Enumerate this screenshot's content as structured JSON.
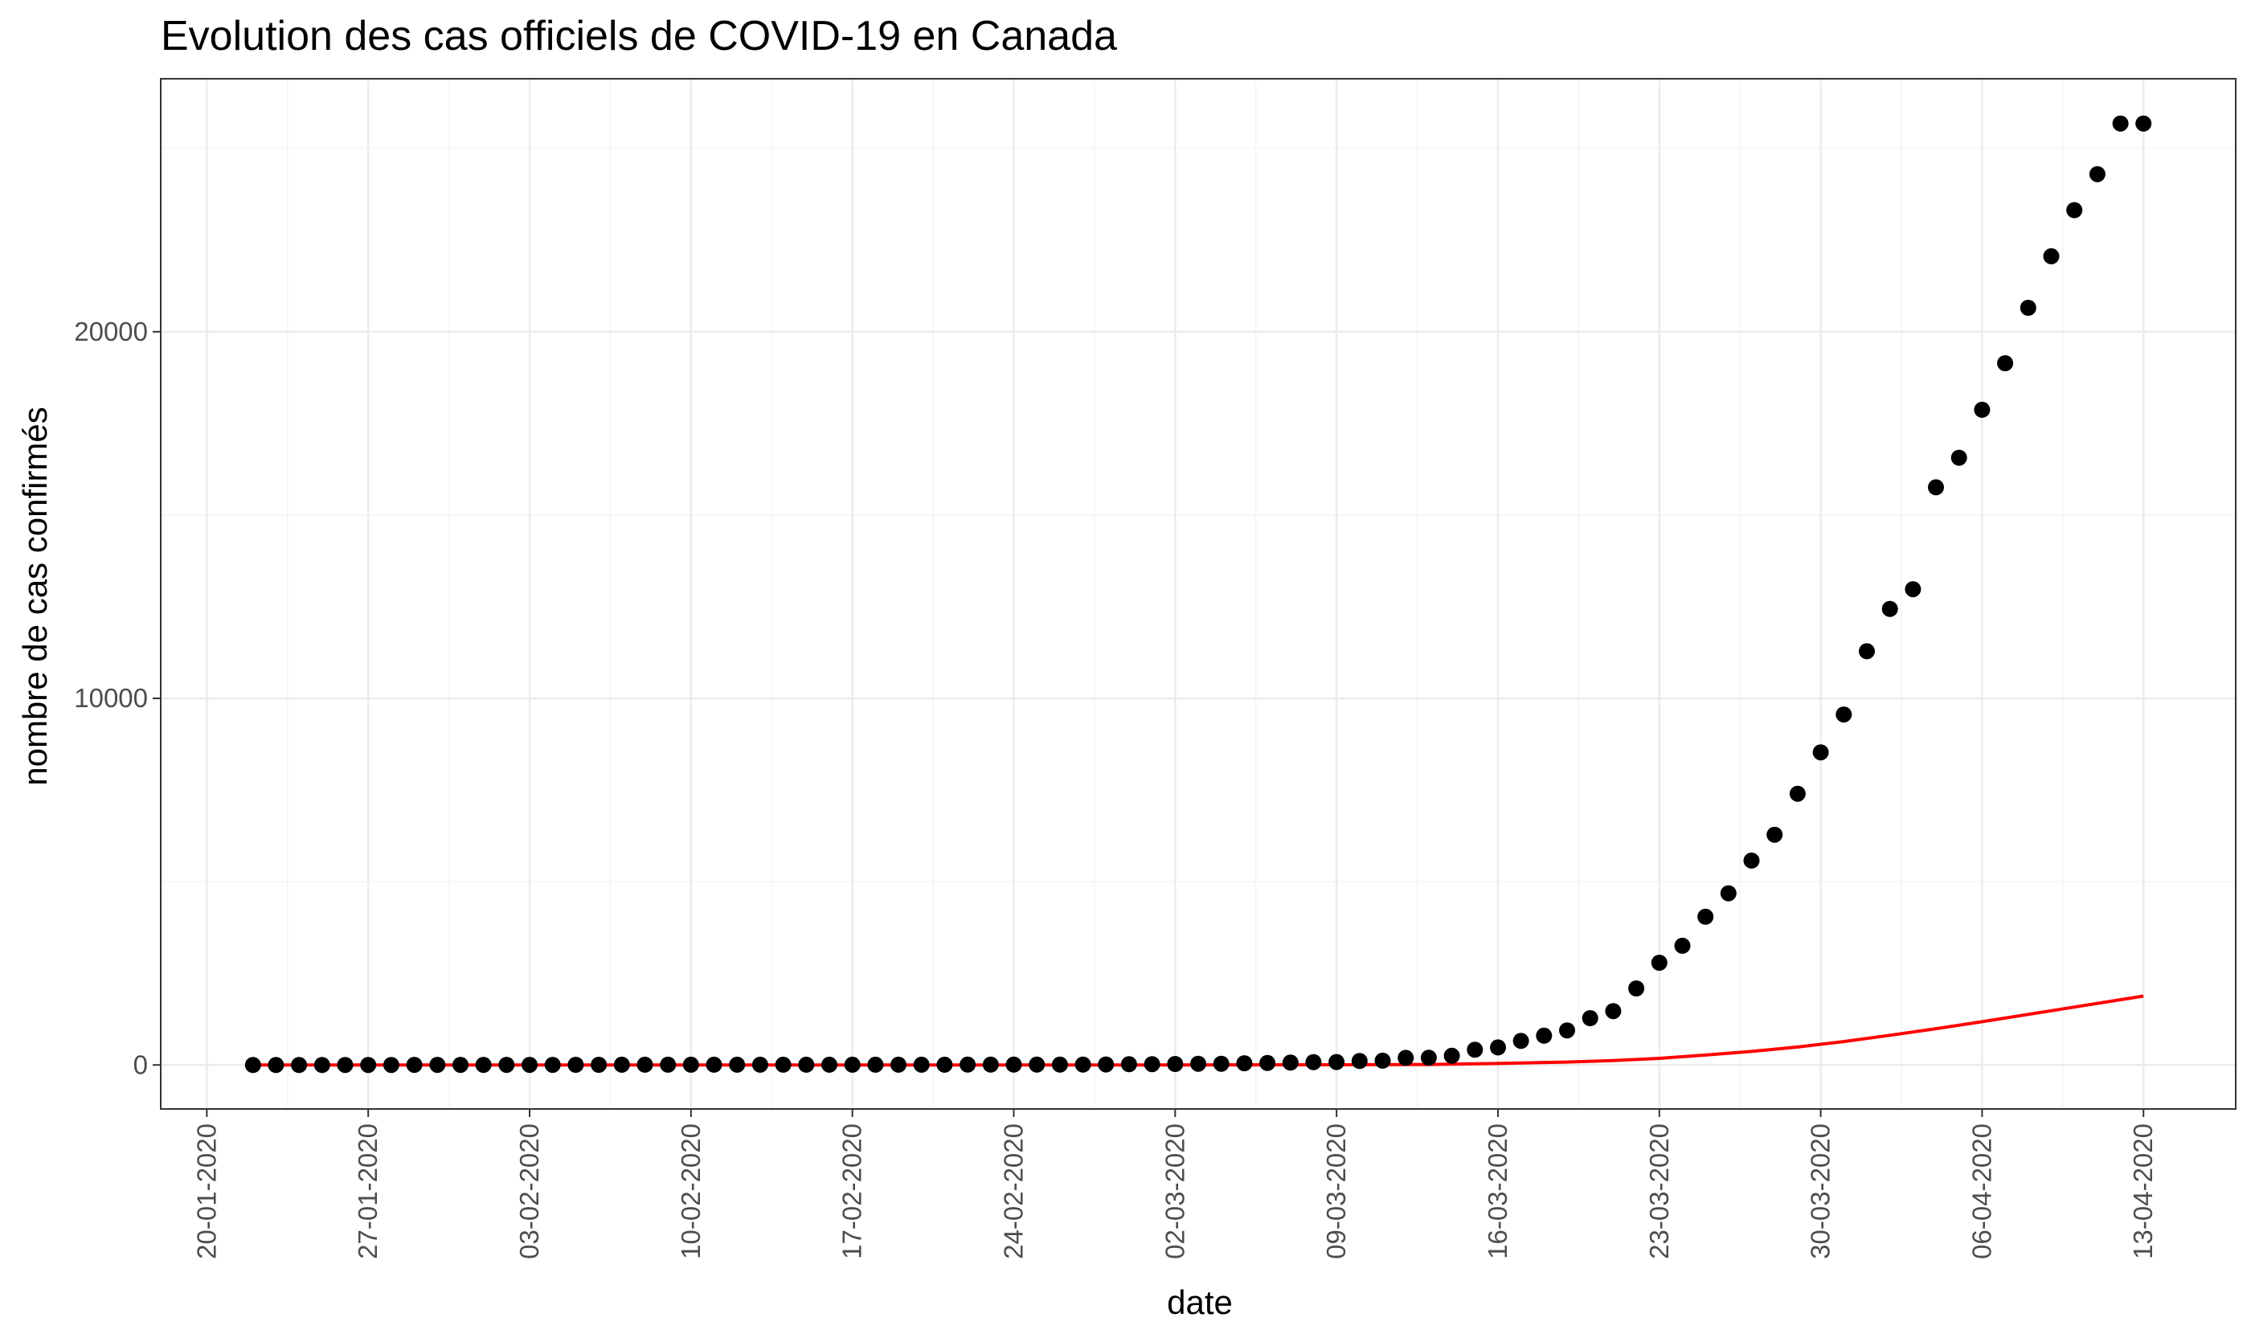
{
  "chart_data": {
    "type": "scatter",
    "title": "Evolution des cas officiels de COVID-19 en Canada",
    "xlabel": "date",
    "ylabel": "nombre de cas confirmés",
    "x_tick_labels": [
      "20-01-2020",
      "27-01-2020",
      "03-02-2020",
      "10-02-2020",
      "17-02-2020",
      "24-02-2020",
      "02-03-2020",
      "09-03-2020",
      "16-03-2020",
      "23-03-2020",
      "30-03-2020",
      "06-04-2020",
      "13-04-2020"
    ],
    "y_ticks": [
      0,
      10000,
      20000
    ],
    "y_tick_labels": [
      "0",
      "10000",
      "20000"
    ],
    "x_range": [
      "2020-01-18",
      "2020-04-17"
    ],
    "y_range": [
      -1200,
      26900
    ],
    "grid": true,
    "legend": "none",
    "series": [
      {
        "type": "points",
        "color": "#000000",
        "x": [
          "2020-01-22",
          "2020-01-23",
          "2020-01-24",
          "2020-01-25",
          "2020-01-26",
          "2020-01-27",
          "2020-01-28",
          "2020-01-29",
          "2020-01-30",
          "2020-01-31",
          "2020-02-01",
          "2020-02-02",
          "2020-02-03",
          "2020-02-04",
          "2020-02-05",
          "2020-02-06",
          "2020-02-07",
          "2020-02-08",
          "2020-02-09",
          "2020-02-10",
          "2020-02-11",
          "2020-02-12",
          "2020-02-13",
          "2020-02-14",
          "2020-02-15",
          "2020-02-16",
          "2020-02-17",
          "2020-02-18",
          "2020-02-19",
          "2020-02-20",
          "2020-02-21",
          "2020-02-22",
          "2020-02-23",
          "2020-02-24",
          "2020-02-25",
          "2020-02-26",
          "2020-02-27",
          "2020-02-28",
          "2020-02-29",
          "2020-03-01",
          "2020-03-02",
          "2020-03-03",
          "2020-03-04",
          "2020-03-05",
          "2020-03-06",
          "2020-03-07",
          "2020-03-08",
          "2020-03-09",
          "2020-03-10",
          "2020-03-11",
          "2020-03-12",
          "2020-03-13",
          "2020-03-14",
          "2020-03-15",
          "2020-03-16",
          "2020-03-17",
          "2020-03-18",
          "2020-03-19",
          "2020-03-20",
          "2020-03-21",
          "2020-03-22",
          "2020-03-23",
          "2020-03-24",
          "2020-03-25",
          "2020-03-26",
          "2020-03-27",
          "2020-03-28",
          "2020-03-29",
          "2020-03-30",
          "2020-03-31",
          "2020-04-01",
          "2020-04-02",
          "2020-04-03",
          "2020-04-04",
          "2020-04-05",
          "2020-04-06",
          "2020-04-07",
          "2020-04-08",
          "2020-04-09",
          "2020-04-10",
          "2020-04-11",
          "2020-04-12",
          "2020-04-13"
        ],
        "y": [
          0,
          0,
          0,
          0,
          1,
          1,
          2,
          3,
          3,
          4,
          4,
          4,
          4,
          4,
          5,
          5,
          7,
          7,
          7,
          7,
          7,
          7,
          7,
          7,
          7,
          8,
          8,
          8,
          8,
          8,
          8,
          9,
          9,
          10,
          11,
          11,
          13,
          14,
          20,
          24,
          27,
          33,
          34,
          48,
          54,
          64,
          77,
          79,
          108,
          117,
          193,
          198,
          252,
          415,
          478,
          657,
          800,
          943,
          1277,
          1469,
          2088,
          2790,
          3251,
          4042,
          4682,
          5576,
          6280,
          7398,
          8527,
          9560,
          11284,
          12437,
          12978,
          15756,
          16563,
          17872,
          19141,
          20654,
          22059,
          23316,
          24299,
          25680,
          25680
        ]
      },
      {
        "type": "line",
        "color": "#ff0000",
        "x": [
          "2020-01-22",
          "2020-02-15",
          "2020-03-01",
          "2020-03-09",
          "2020-03-13",
          "2020-03-16",
          "2020-03-19",
          "2020-03-21",
          "2020-03-23",
          "2020-03-25",
          "2020-03-27",
          "2020-03-29",
          "2020-03-31",
          "2020-04-02",
          "2020-04-04",
          "2020-04-06",
          "2020-04-08",
          "2020-04-10",
          "2020-04-13"
        ],
        "y": [
          0,
          0,
          0,
          5,
          15,
          40,
          80,
          120,
          180,
          270,
          370,
          490,
          640,
          810,
          990,
          1180,
          1380,
          1580,
          1880
        ]
      }
    ]
  }
}
